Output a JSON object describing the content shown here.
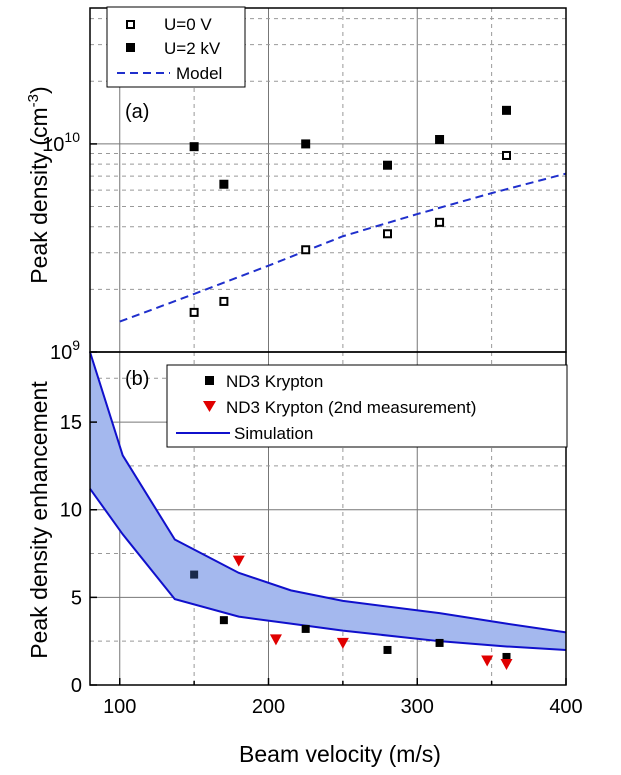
{
  "chart_data": [
    {
      "panel_label": "(a)",
      "type": "scatter",
      "ylabel": "Peak density (cm",
      "ylabel_sup": "-3",
      "ylabel_close": ")",
      "yscale": "log",
      "ylim": [
        1000000000.0,
        45000000000.0
      ],
      "xlim": [
        80,
        400
      ],
      "grid": true,
      "y_ticks": [
        {
          "value": 1000000000.0,
          "base": "10",
          "exp": "9"
        },
        {
          "value": 10000000000.0,
          "base": "10",
          "exp": "10"
        }
      ],
      "series": [
        {
          "name": "U=0 V",
          "marker": "open-square",
          "x": [
            150,
            170,
            225,
            280,
            315,
            360
          ],
          "y": [
            1550000000.0,
            1750000000.0,
            3100000000.0,
            3700000000.0,
            4200000000.0,
            8800000000.0
          ]
        },
        {
          "name": "U=2 kV",
          "marker": "filled-square",
          "x": [
            150,
            170,
            225,
            280,
            315,
            360
          ],
          "y": [
            9700000000.0,
            6400000000.0,
            10000000000.0,
            7900000000.0,
            10500000000.0,
            14500000000.0
          ]
        },
        {
          "name": "Model",
          "style": "dashed-line",
          "color": "#1f2fcc",
          "x": [
            100,
            150,
            200,
            250,
            300,
            350,
            400
          ],
          "y": [
            1400000000.0,
            1900000000.0,
            2600000000.0,
            3600000000.0,
            4600000000.0,
            5800000000.0,
            7200000000.0
          ]
        }
      ],
      "legend_position": "top-left"
    },
    {
      "panel_label": "(b)",
      "type": "scatter",
      "ylabel": "Peak density enhancement",
      "xlabel": "Beam velocity  (m/s)",
      "ylim": [
        0,
        19
      ],
      "xlim": [
        80,
        400
      ],
      "grid": true,
      "x_ticks": [
        "100",
        "200",
        "300",
        "400"
      ],
      "y_ticks": [
        "0",
        "5",
        "10",
        "15"
      ],
      "series": [
        {
          "name": "ND3 Krypton",
          "marker": "filled-square",
          "color": "#000000",
          "x": [
            150,
            170,
            225,
            280,
            315,
            360
          ],
          "y": [
            6.3,
            3.7,
            3.2,
            2.0,
            2.4,
            1.6
          ]
        },
        {
          "name": "ND3 Krypton  (2nd measurement)",
          "marker": "triangle-down",
          "color": "#e00000",
          "x": [
            180,
            205,
            250,
            347,
            360
          ],
          "y": [
            7.1,
            2.6,
            2.4,
            1.4,
            1.2
          ]
        },
        {
          "name": "Simulation",
          "style": "band",
          "color": "#1010cc",
          "fill": "#a4b8ee",
          "x": [
            80,
            102,
            137,
            180,
            215,
            250,
            315,
            360,
            400
          ],
          "upper": [
            19,
            13.1,
            8.3,
            6.4,
            5.4,
            4.8,
            4.1,
            3.5,
            3.0
          ],
          "lower": [
            11.2,
            8.6,
            4.9,
            3.9,
            3.5,
            3.1,
            2.5,
            2.2,
            2.0
          ]
        }
      ],
      "legend_position": "top-right"
    }
  ]
}
